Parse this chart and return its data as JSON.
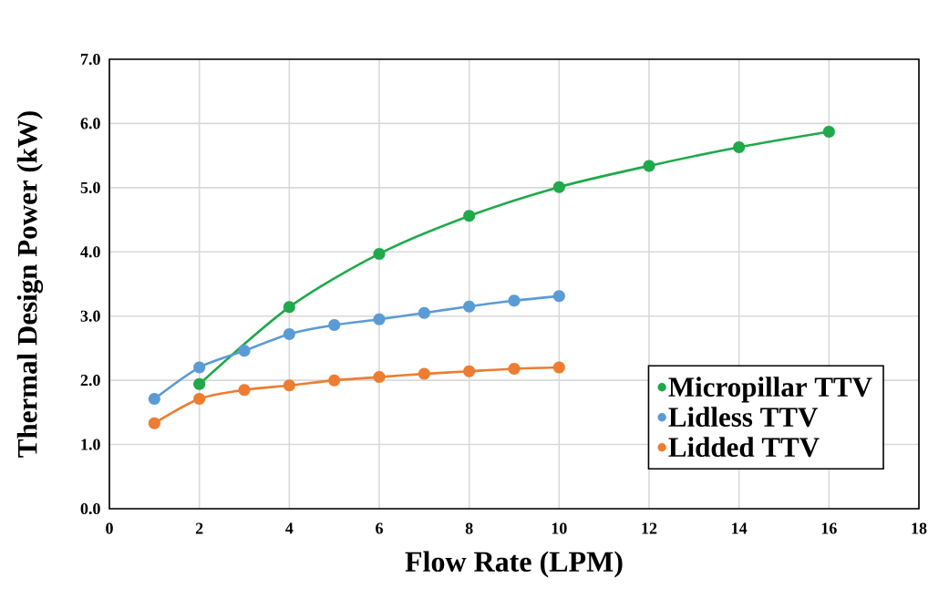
{
  "chart_data": {
    "type": "line",
    "xlabel": "Flow Rate (LPM)",
    "ylabel": "Thermal Design Power (kW)",
    "xlim": [
      0,
      18
    ],
    "ylim": [
      0,
      7
    ],
    "xticks": [
      0,
      2,
      4,
      6,
      8,
      10,
      12,
      14,
      16,
      18
    ],
    "yticks": [
      {
        "value": 0,
        "label": "0.0"
      },
      {
        "value": 1,
        "label": "1.0"
      },
      {
        "value": 2,
        "label": "2.0"
      },
      {
        "value": 3,
        "label": "3.0"
      },
      {
        "value": 4,
        "label": "4.0"
      },
      {
        "value": 5,
        "label": "5.0"
      },
      {
        "value": 6,
        "label": "6.0"
      },
      {
        "value": 7,
        "label": "7.0"
      }
    ],
    "grid": true,
    "legend": "bottom right",
    "marker": "circle",
    "line_style": "solid",
    "series": [
      {
        "name": "Micropillar TTV",
        "color": "#1fa94b",
        "x": [
          2,
          4,
          6,
          8,
          10,
          12,
          14,
          16
        ],
        "values": [
          1.94,
          3.14,
          3.97,
          4.56,
          5.01,
          5.34,
          5.63,
          5.87
        ]
      },
      {
        "name": "Lidless TTV",
        "color": "#5b9bd5",
        "x": [
          1,
          2,
          3,
          4,
          5,
          6,
          7,
          8,
          9,
          10
        ],
        "values": [
          1.71,
          2.2,
          2.46,
          2.72,
          2.86,
          2.95,
          3.05,
          3.15,
          3.24,
          3.31
        ]
      },
      {
        "name": "Lidded TTV",
        "color": "#ed7d31",
        "x": [
          1,
          2,
          3,
          4,
          5,
          6,
          7,
          8,
          9,
          10
        ],
        "values": [
          1.33,
          1.71,
          1.85,
          1.92,
          2.0,
          2.05,
          2.1,
          2.14,
          2.18,
          2.2
        ]
      }
    ]
  }
}
